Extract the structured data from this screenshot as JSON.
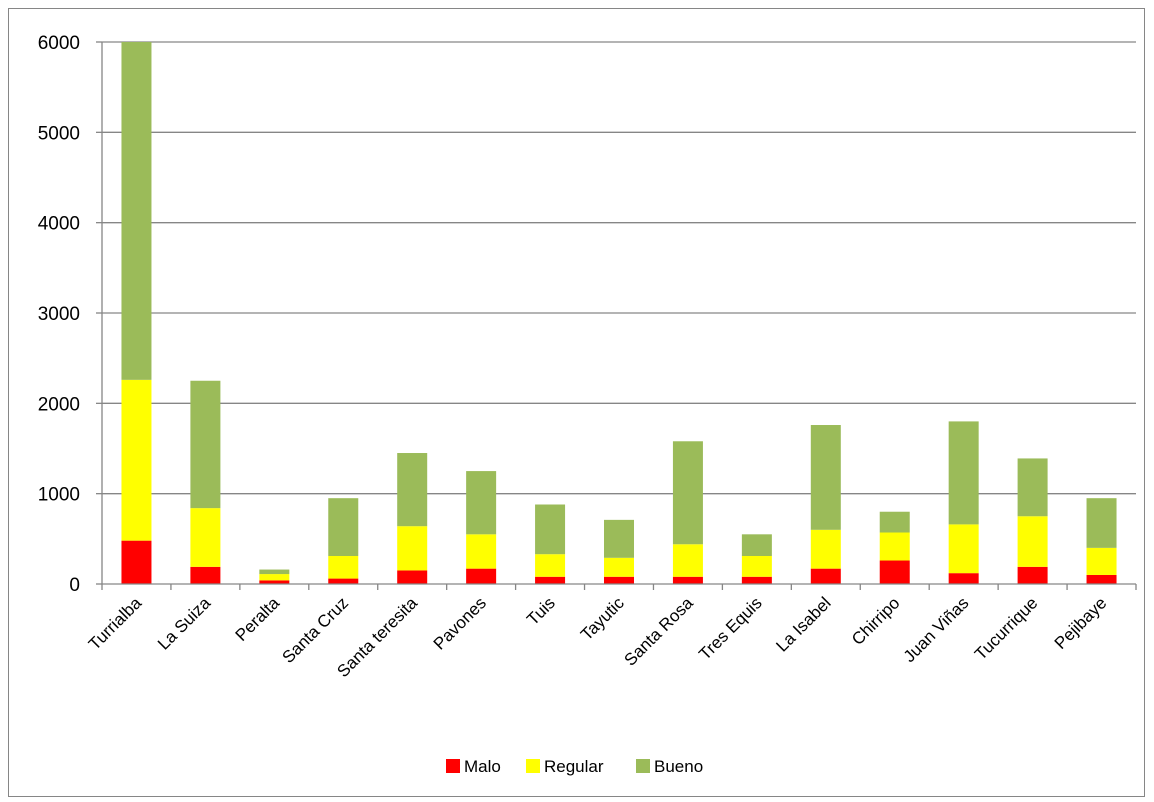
{
  "chart_data": {
    "type": "bar",
    "stacked": true,
    "categories": [
      "Turrialba",
      "La Suiza",
      "Peralta",
      "Santa Cruz",
      "Santa teresita",
      "Pavones",
      "Tuis",
      "Tayutic",
      "Santa Rosa",
      "Tres Equis",
      "La Isabel",
      "Chirripo",
      "Juan Viñas",
      "Tucurrique",
      "Pejibaye"
    ],
    "series": [
      {
        "name": "Malo",
        "color": "#ff0000",
        "values": [
          480,
          190,
          40,
          60,
          150,
          170,
          80,
          80,
          80,
          80,
          170,
          260,
          120,
          190,
          100
        ]
      },
      {
        "name": "Regular",
        "color": "#ffff00",
        "values": [
          1780,
          650,
          70,
          250,
          490,
          380,
          250,
          210,
          360,
          230,
          430,
          310,
          540,
          560,
          300
        ]
      },
      {
        "name": "Bueno",
        "color": "#9bbb59",
        "values": [
          3740,
          1410,
          50,
          640,
          810,
          700,
          550,
          420,
          1140,
          240,
          1160,
          230,
          1140,
          640,
          550
        ]
      }
    ],
    "yticks": [
      "0",
      "1000",
      "2000",
      "3000",
      "4000",
      "5000",
      "6000"
    ],
    "ylim": [
      0,
      6000
    ],
    "grid": true,
    "legend_position": "bottom",
    "title": "",
    "xlabel": "",
    "ylabel": ""
  }
}
